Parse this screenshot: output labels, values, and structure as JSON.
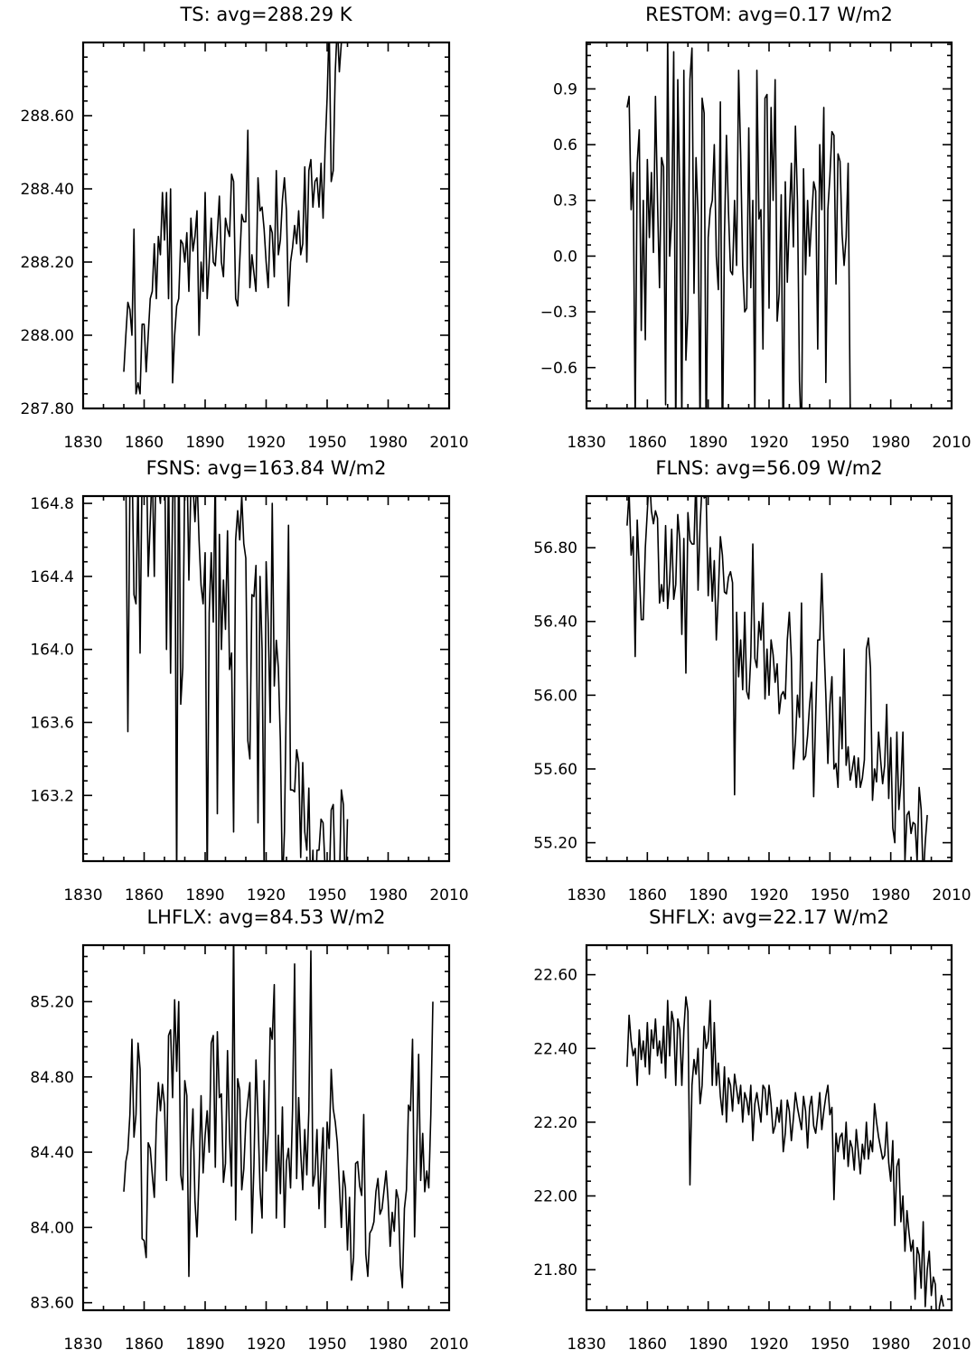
{
  "chart_data": [
    {
      "type": "line",
      "title": "TS: avg=288.29 K",
      "xlim": [
        1830,
        2010
      ],
      "ylim": [
        287.8,
        288.8
      ],
      "xticks": [
        1830,
        1860,
        1890,
        1920,
        1950,
        1980,
        2010
      ],
      "xtick_labels": [
        "1830",
        "1860",
        "1890",
        "1920",
        "1950",
        "1980",
        "2010"
      ],
      "yticks": [
        287.8,
        288.0,
        288.2,
        288.4,
        288.6
      ],
      "ytick_labels": [
        "287.80",
        "288.00",
        "288.20",
        "288.40",
        "288.60"
      ],
      "x_start": 1850,
      "values": [
        287.9,
        288.0,
        288.09,
        288.07,
        288.0,
        288.29,
        287.84,
        287.87,
        287.84,
        288.03,
        288.03,
        287.9,
        288.0,
        288.1,
        288.12,
        288.25,
        288.1,
        288.27,
        288.22,
        288.39,
        288.26,
        288.39,
        288.1,
        288.4,
        287.87,
        288.0,
        288.08,
        288.1,
        288.26,
        288.25,
        288.2,
        288.28,
        288.12,
        288.32,
        288.23,
        288.27,
        288.34,
        288.0,
        288.2,
        288.12,
        288.39,
        288.1,
        288.2,
        288.32,
        288.2,
        288.19,
        288.28,
        288.38,
        288.2,
        288.16,
        288.32,
        288.29,
        288.27,
        288.44,
        288.42,
        288.1,
        288.08,
        288.2,
        288.33,
        288.31,
        288.31,
        288.56,
        288.13,
        288.22,
        288.17,
        288.12,
        288.43,
        288.34,
        288.35,
        288.29,
        288.2,
        288.13,
        288.3,
        288.28,
        288.16,
        288.45,
        288.22,
        288.26,
        288.37,
        288.43,
        288.34,
        288.08,
        288.2,
        288.24,
        288.3,
        288.25,
        288.34,
        288.22,
        288.25,
        288.46,
        288.2,
        288.45,
        288.48,
        288.35,
        288.42,
        288.43,
        288.35,
        288.47,
        288.32,
        288.51,
        288.65,
        288.85,
        288.42,
        288.45,
        288.72,
        288.85,
        288.72,
        288.8
      ]
    },
    {
      "type": "line",
      "title": "RESTOM: avg=0.17 W/m2",
      "xlim": [
        1830,
        2010
      ],
      "ylim": [
        -0.82,
        1.15
      ],
      "xticks": [
        1830,
        1860,
        1890,
        1920,
        1950,
        1980,
        2010
      ],
      "xtick_labels": [
        "1830",
        "1860",
        "1890",
        "1920",
        "1950",
        "1980",
        "2010"
      ],
      "yticks": [
        -0.6,
        -0.3,
        0.0,
        0.3,
        0.6,
        0.9
      ],
      "ytick_labels": [
        "−0.6",
        "−0.3",
        "0.0",
        "0.3",
        "0.6",
        "0.9"
      ],
      "x_start": 1850,
      "values": [
        0.8,
        0.86,
        0.25,
        0.45,
        -0.9,
        0.5,
        0.68,
        -0.4,
        0.3,
        -0.45,
        0.52,
        0.1,
        0.45,
        0.02,
        0.86,
        0.3,
        -0.17,
        0.53,
        0.48,
        -0.8,
        1.2,
        0.0,
        0.2,
        1.1,
        -1.0,
        0.95,
        0.3,
        -0.9,
        1.0,
        -0.56,
        -0.3,
        0.95,
        1.12,
        -0.2,
        0.53,
        0.22,
        -0.95,
        0.85,
        0.77,
        -1.0,
        0.1,
        0.25,
        0.3,
        0.6,
        0.0,
        -0.18,
        0.83,
        -1.1,
        0.1,
        0.65,
        0.24,
        -0.08,
        -0.1,
        0.3,
        -0.05,
        1.0,
        0.55,
        -0.05,
        -0.3,
        -0.28,
        0.69,
        -0.17,
        0.3,
        -0.9,
        1.0,
        0.2,
        0.25,
        -0.5,
        0.85,
        0.87,
        -0.28,
        0.8,
        0.3,
        0.95,
        -0.35,
        -0.2,
        0.33,
        -1.1,
        0.4,
        -0.14,
        0.2,
        0.5,
        0.05,
        0.7,
        0.3,
        -0.67,
        -1.0,
        0.47,
        -0.1,
        0.3,
        0.0,
        0.2,
        0.4,
        0.35,
        -0.5,
        0.6,
        0.25,
        0.8,
        -0.68,
        0.25,
        0.43,
        0.67,
        0.65,
        -0.15,
        0.55,
        0.51,
        0.12,
        -0.05,
        0.1,
        0.5,
        -0.82
      ]
    },
    {
      "type": "line",
      "title": "FSNS: avg=163.84 W/m2",
      "xlim": [
        1830,
        2010
      ],
      "ylim": [
        162.84,
        164.84
      ],
      "xticks": [
        1830,
        1860,
        1890,
        1920,
        1950,
        1980,
        2010
      ],
      "xtick_labels": [
        "1830",
        "1860",
        "1890",
        "1920",
        "1950",
        "1980",
        "2010"
      ],
      "yticks": [
        163.2,
        163.6,
        164.0,
        164.4,
        164.8
      ],
      "ytick_labels": [
        "163.2",
        "163.6",
        "164.0",
        "164.4",
        "164.8"
      ],
      "x_start": 1850,
      "values": [
        165.1,
        165.0,
        163.55,
        164.9,
        165.1,
        164.3,
        164.25,
        164.95,
        163.98,
        165.0,
        164.92,
        165.2,
        164.4,
        164.7,
        165.0,
        164.4,
        165.2,
        164.9,
        164.8,
        165.1,
        165.2,
        164.0,
        165.0,
        163.87,
        164.8,
        165.1,
        162.7,
        165.3,
        163.7,
        163.9,
        165.0,
        165.1,
        164.38,
        164.9,
        164.9,
        164.7,
        164.95,
        164.6,
        164.35,
        164.25,
        164.53,
        162.7,
        164.2,
        164.53,
        164.15,
        165.0,
        163.1,
        164.63,
        164.0,
        164.38,
        164.11,
        164.65,
        163.89,
        163.98,
        163.0,
        164.6,
        164.76,
        164.6,
        164.84,
        164.58,
        164.5,
        163.5,
        163.4,
        164.3,
        164.29,
        164.46,
        163.05,
        164.4,
        164.0,
        162.8,
        164.48,
        164.15,
        163.6,
        164.8,
        163.8,
        164.05,
        163.9,
        163.5,
        162.7,
        163.0,
        163.8,
        164.68,
        163.23,
        163.23,
        163.22,
        163.45,
        163.38,
        162.86,
        163.38,
        163.0,
        162.9,
        163.24,
        162.6,
        162.9,
        162.5,
        162.9,
        162.9,
        163.07,
        163.05,
        162.8,
        162.7,
        162.7,
        163.12,
        163.15,
        162.7,
        162.6,
        162.7,
        163.23,
        163.15,
        162.6,
        163.07
      ]
    },
    {
      "type": "line",
      "title": "FLNS: avg=56.09 W/m2",
      "xlim": [
        1830,
        2010
      ],
      "ylim": [
        55.1,
        57.08
      ],
      "xticks": [
        1830,
        1860,
        1890,
        1920,
        1950,
        1980,
        2010
      ],
      "xtick_labels": [
        "1830",
        "1860",
        "1890",
        "1920",
        "1950",
        "1980",
        "2010"
      ],
      "yticks": [
        55.2,
        55.6,
        56.0,
        56.4,
        56.8
      ],
      "ytick_labels": [
        "55.20",
        "55.60",
        "56.00",
        "56.40",
        "56.80"
      ],
      "x_start": 1850,
      "values": [
        56.92,
        57.1,
        56.76,
        56.86,
        56.21,
        56.95,
        56.68,
        56.41,
        56.41,
        56.8,
        57.0,
        57.2,
        57.0,
        56.93,
        57.0,
        56.96,
        56.5,
        56.6,
        56.51,
        56.92,
        56.47,
        56.62,
        56.9,
        56.52,
        56.6,
        56.98,
        56.84,
        56.33,
        56.85,
        56.12,
        56.99,
        56.84,
        56.82,
        56.82,
        57.2,
        56.57,
        56.92,
        57.15,
        57.07,
        57.08,
        56.54,
        56.8,
        56.51,
        56.73,
        56.3,
        56.55,
        56.86,
        56.76,
        56.56,
        56.55,
        56.64,
        56.67,
        56.61,
        55.46,
        56.45,
        56.1,
        56.3,
        56.03,
        56.45,
        56.02,
        55.98,
        56.21,
        56.82,
        56.2,
        56.15,
        56.4,
        56.3,
        56.5,
        55.98,
        56.25,
        56.0,
        56.3,
        56.22,
        56.07,
        56.17,
        55.9,
        56.0,
        56.02,
        55.98,
        56.3,
        56.45,
        56.2,
        55.6,
        55.75,
        56.0,
        55.88,
        56.5,
        55.65,
        55.67,
        55.78,
        55.95,
        56.07,
        55.45,
        55.9,
        56.3,
        56.3,
        56.66,
        56.3,
        56.0,
        55.63,
        55.95,
        56.1,
        55.6,
        55.63,
        55.5,
        55.99,
        55.71,
        56.25,
        55.62,
        55.72,
        55.54,
        55.6,
        55.67,
        55.5,
        55.66,
        55.5,
        55.55,
        55.65,
        56.25,
        56.31,
        56.15,
        55.43,
        55.6,
        55.53,
        55.8,
        55.65,
        55.52,
        55.62,
        55.95,
        55.44,
        55.77,
        55.28,
        55.2,
        55.8,
        55.38,
        55.52,
        55.8,
        55.1,
        55.35,
        55.37,
        55.25,
        55.31,
        55.3,
        55.1,
        55.5,
        55.38,
        55.0,
        55.2,
        55.35
      ]
    },
    {
      "type": "line",
      "title": "LHFLX: avg=84.53 W/m2",
      "xlim": [
        1830,
        2010
      ],
      "ylim": [
        83.56,
        85.5
      ],
      "xticks": [
        1830,
        1860,
        1890,
        1920,
        1950,
        1980,
        2010
      ],
      "xtick_labels": [
        "1830",
        "1860",
        "1890",
        "1920",
        "1950",
        "1980",
        "2010"
      ],
      "yticks": [
        83.6,
        84.0,
        84.4,
        84.8,
        85.2
      ],
      "ytick_labels": [
        "83.60",
        "84.00",
        "84.40",
        "84.80",
        "85.20"
      ],
      "x_start": 1850,
      "values": [
        84.19,
        84.35,
        84.41,
        84.6,
        85.0,
        84.48,
        84.6,
        84.98,
        84.84,
        83.94,
        83.93,
        83.84,
        84.45,
        84.42,
        84.28,
        84.16,
        84.55,
        84.77,
        84.62,
        84.76,
        84.65,
        84.25,
        85.02,
        85.05,
        84.69,
        85.21,
        84.83,
        85.2,
        84.28,
        84.2,
        84.78,
        84.7,
        83.74,
        84.41,
        84.63,
        84.14,
        83.95,
        84.28,
        84.7,
        84.29,
        84.49,
        84.62,
        84.4,
        84.98,
        85.02,
        84.32,
        85.04,
        84.69,
        84.71,
        84.24,
        84.34,
        84.94,
        84.48,
        84.22,
        85.6,
        84.04,
        84.79,
        84.73,
        84.2,
        84.31,
        84.56,
        84.67,
        84.77,
        83.97,
        84.33,
        84.89,
        84.58,
        84.21,
        84.05,
        84.78,
        84.3,
        84.5,
        85.06,
        85.0,
        85.29,
        84.05,
        84.49,
        84.18,
        84.64,
        84.0,
        84.35,
        84.42,
        84.21,
        84.63,
        85.4,
        84.26,
        84.69,
        84.4,
        84.2,
        84.52,
        84.28,
        84.62,
        85.47,
        84.22,
        84.28,
        84.52,
        84.1,
        84.33,
        84.53,
        84.0,
        84.56,
        84.42,
        84.84,
        84.63,
        84.56,
        84.45,
        84.23,
        84.0,
        84.3,
        84.21,
        83.88,
        84.16,
        83.72,
        83.84,
        84.34,
        84.35,
        84.22,
        84.17,
        84.6,
        83.86,
        83.74,
        83.97,
        83.99,
        84.03,
        84.19,
        84.26,
        84.07,
        84.1,
        84.2,
        84.3,
        84.14,
        83.9,
        84.08,
        83.98,
        84.2,
        84.15,
        83.8,
        83.68,
        84.1,
        84.2,
        84.65,
        84.62,
        85.0,
        83.95,
        84.41,
        84.92,
        84.25,
        84.5,
        84.19,
        84.3,
        84.21,
        84.6,
        85.2
      ]
    },
    {
      "type": "line",
      "title": "SHFLX: avg=22.17 W/m2",
      "xlim": [
        1830,
        2010
      ],
      "ylim": [
        21.69,
        22.68
      ],
      "xticks": [
        1830,
        1860,
        1890,
        1920,
        1950,
        1980,
        2010
      ],
      "xtick_labels": [
        "1830",
        "1860",
        "1890",
        "1920",
        "1950",
        "1980",
        "2010"
      ],
      "yticks": [
        21.8,
        22.0,
        22.2,
        22.4,
        22.6
      ],
      "ytick_labels": [
        "21.80",
        "22.00",
        "22.20",
        "22.40",
        "22.60"
      ],
      "x_start": 1850,
      "values": [
        22.35,
        22.49,
        22.42,
        22.38,
        22.4,
        22.3,
        22.45,
        22.37,
        22.42,
        22.35,
        22.47,
        22.33,
        22.45,
        22.4,
        22.48,
        22.38,
        22.42,
        22.36,
        22.46,
        22.32,
        22.53,
        22.38,
        22.5,
        22.47,
        22.3,
        22.48,
        22.45,
        22.3,
        22.45,
        22.54,
        22.5,
        22.03,
        22.3,
        22.37,
        22.33,
        22.4,
        22.25,
        22.3,
        22.46,
        22.4,
        22.42,
        22.53,
        22.3,
        22.47,
        22.3,
        22.36,
        22.27,
        22.22,
        22.35,
        22.2,
        22.32,
        22.3,
        22.23,
        22.33,
        22.29,
        22.25,
        22.3,
        22.2,
        22.28,
        22.26,
        22.22,
        22.3,
        22.15,
        22.25,
        22.28,
        22.24,
        22.2,
        22.3,
        22.29,
        22.22,
        22.3,
        22.25,
        22.17,
        22.19,
        22.24,
        22.2,
        22.26,
        22.12,
        22.17,
        22.26,
        22.23,
        22.15,
        22.21,
        22.28,
        22.24,
        22.21,
        22.18,
        22.27,
        22.23,
        22.13,
        22.24,
        22.27,
        22.19,
        22.17,
        22.22,
        22.28,
        22.18,
        22.23,
        22.27,
        22.3,
        22.22,
        22.24,
        21.99,
        22.17,
        22.12,
        22.16,
        22.17,
        22.1,
        22.2,
        22.08,
        22.15,
        22.13,
        22.07,
        22.18,
        22.12,
        22.06,
        22.14,
        22.1,
        22.2,
        22.1,
        22.15,
        22.12,
        22.25,
        22.2,
        22.16,
        22.13,
        22.1,
        22.11,
        22.2,
        22.09,
        22.04,
        22.15,
        21.92,
        22.08,
        22.1,
        21.93,
        22.0,
        21.85,
        21.96,
        21.9,
        21.85,
        21.88,
        21.72,
        21.86,
        21.84,
        21.75,
        21.93,
        21.7,
        21.8,
        21.85,
        21.73,
        21.78,
        21.76,
        21.6,
        21.7,
        21.73,
        21.7
      ]
    }
  ]
}
